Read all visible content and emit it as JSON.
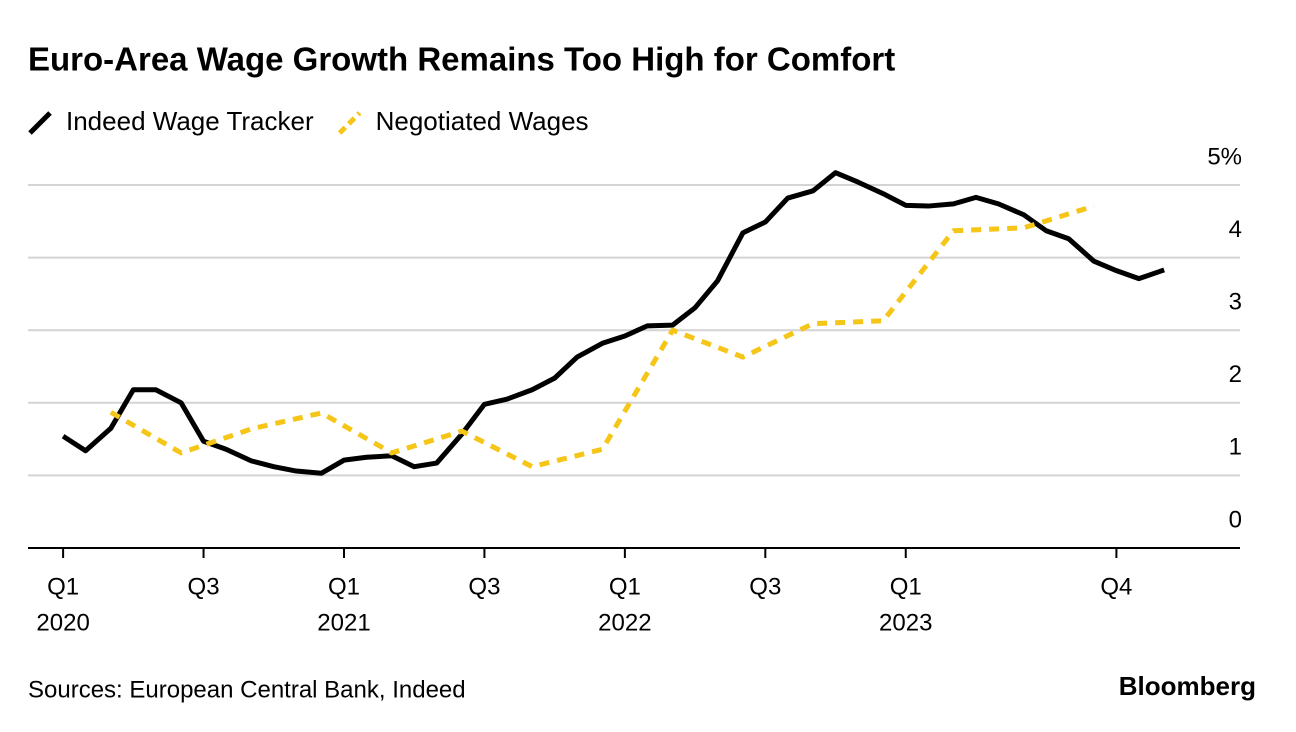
{
  "chart_data": {
    "type": "line",
    "title": "Euro-Area Wage Growth Remains Too High for Comfort",
    "source": "Sources: European Central Bank, Indeed",
    "brand": "Bloomberg",
    "series": [
      {
        "name": "Indeed Wage Tracker",
        "color": "#000000",
        "dashed": false,
        "x": [
          2020.0,
          2020.08,
          2020.17,
          2020.25,
          2020.33,
          2020.42,
          2020.5,
          2020.58,
          2020.67,
          2020.75,
          2020.83,
          2020.92,
          2021.0,
          2021.08,
          2021.17,
          2021.25,
          2021.33,
          2021.42,
          2021.5,
          2021.58,
          2021.67,
          2021.75,
          2021.83,
          2021.92,
          2022.0,
          2022.08,
          2022.17,
          2022.25,
          2022.33,
          2022.42,
          2022.5,
          2022.58,
          2022.67,
          2022.75,
          2022.83,
          2022.92,
          2023.0,
          2023.08,
          2023.17,
          2023.25,
          2023.33,
          2023.42,
          2023.5,
          2023.58,
          2023.67,
          2023.75,
          2023.83,
          2023.92
        ],
        "values": [
          1.54,
          1.34,
          1.65,
          2.18,
          2.18,
          2.0,
          1.47,
          1.36,
          1.2,
          1.12,
          1.06,
          1.03,
          1.21,
          1.25,
          1.27,
          1.12,
          1.17,
          1.57,
          1.98,
          2.05,
          2.18,
          2.34,
          2.63,
          2.82,
          2.92,
          3.06,
          3.07,
          3.31,
          3.68,
          4.34,
          4.49,
          4.82,
          4.92,
          5.17,
          5.04,
          4.88,
          4.72,
          4.71,
          4.74,
          4.83,
          4.74,
          4.59,
          4.37,
          4.26,
          3.95,
          3.82,
          3.71,
          3.83
        ]
      },
      {
        "name": "Negotiated Wages",
        "color": "#f5c518",
        "dashed": true,
        "x": [
          2020.17,
          2020.42,
          2020.67,
          2020.92,
          2021.17,
          2021.42,
          2021.67,
          2021.92,
          2022.17,
          2022.42,
          2022.67,
          2022.92,
          2023.17,
          2023.42,
          2023.67
        ],
        "values": [
          1.87,
          1.31,
          1.64,
          1.86,
          1.31,
          1.61,
          1.12,
          1.36,
          3.0,
          2.63,
          3.09,
          3.13,
          4.37,
          4.41,
          4.71
        ]
      }
    ],
    "xlim": [
      2019.875,
      2024.19
    ],
    "xticks": [
      {
        "value": 2020.0,
        "label": "Q1",
        "year": "2020"
      },
      {
        "value": 2020.5,
        "label": "Q3"
      },
      {
        "value": 2021.0,
        "label": "Q1",
        "year": "2021"
      },
      {
        "value": 2021.5,
        "label": "Q3"
      },
      {
        "value": 2022.0,
        "label": "Q1",
        "year": "2022"
      },
      {
        "value": 2022.5,
        "label": "Q3"
      },
      {
        "value": 2023.0,
        "label": "Q1",
        "year": "2023"
      },
      {
        "value": 2023.75,
        "label": "Q4"
      }
    ],
    "ylim": [
      0,
      5
    ],
    "yticks": [
      0,
      1,
      2,
      3,
      4,
      {
        "value": 5,
        "label": "5%"
      }
    ],
    "grid": true
  }
}
